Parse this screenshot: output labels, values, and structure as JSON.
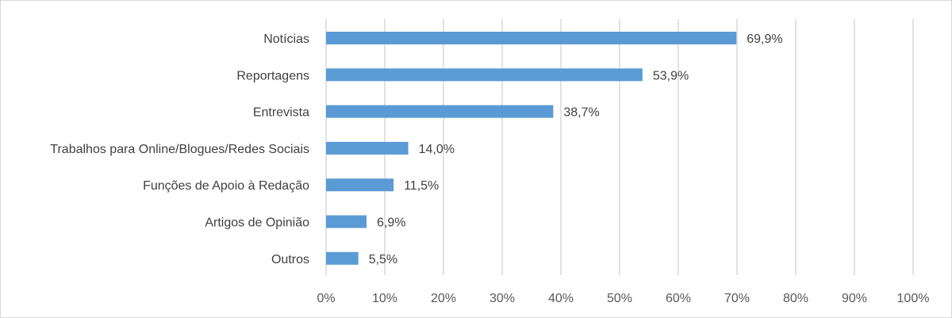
{
  "chart_data": {
    "type": "bar",
    "orientation": "horizontal",
    "categories": [
      "Notícias",
      "Reportagens",
      "Entrevista",
      "Trabalhos para Online/Blogues/Redes Sociais",
      "Funções de Apoio à Redação",
      "Artigos de Opinião",
      "Outros"
    ],
    "values": [
      69.9,
      53.9,
      38.7,
      14.0,
      11.5,
      6.9,
      5.5
    ],
    "data_labels": [
      "69,9%",
      "53,9%",
      "38,7%",
      "14,0%",
      "11,5%",
      "6,9%",
      "5,5%"
    ],
    "x_ticks": [
      "0%",
      "10%",
      "20%",
      "30%",
      "40%",
      "50%",
      "60%",
      "70%",
      "80%",
      "90%",
      "100%"
    ],
    "xlim": [
      0,
      100
    ],
    "title": "",
    "xlabel": "",
    "ylabel": "",
    "grid": "vertical",
    "legend": "none",
    "colors": {
      "bar": "#5b9bd5",
      "grid": "#d9d9d9",
      "border": "#d9d9d9"
    }
  }
}
